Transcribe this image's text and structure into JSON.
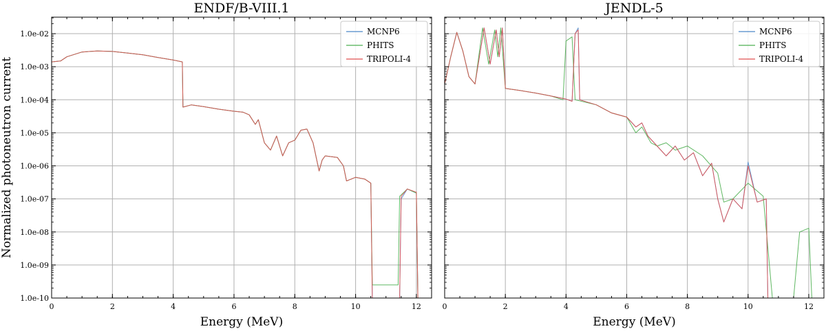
{
  "chart_data": [
    {
      "type": "line",
      "title": "ENDF/B-VIII.1",
      "xlabel": "Energy (MeV)",
      "ylabel": "Normalized photoneutron current",
      "xlim": [
        0,
        12.5
      ],
      "ylim_log10": [
        -10,
        -1.5
      ],
      "x_ticks": [
        "0",
        "2",
        "4",
        "6",
        "8",
        "10",
        "12"
      ],
      "y_ticks": [
        "1.0e-10",
        "1.0e-09",
        "1.0e-08",
        "1.0e-07",
        "1.0e-06",
        "1.0e-05",
        "1.0e-04",
        "1.0e-03",
        "1.0e-02"
      ],
      "grid": true,
      "legend_position": "top-right",
      "legend": [
        "MCNP6",
        "PHITS",
        "TRIPOLI-4"
      ],
      "series": [
        {
          "name": "MCNP6",
          "color": "#4a86c8",
          "points": [
            [
              0,
              0.0014
            ],
            [
              0.3,
              0.0015
            ],
            [
              0.5,
              0.002
            ],
            [
              1.0,
              0.0028
            ],
            [
              1.5,
              0.003
            ],
            [
              2.0,
              0.0029
            ],
            [
              2.5,
              0.0026
            ],
            [
              3.0,
              0.0023
            ],
            [
              3.5,
              0.0019
            ],
            [
              4.0,
              0.0016
            ],
            [
              4.3,
              0.0014
            ],
            [
              4.32,
              6e-05
            ],
            [
              4.6,
              7e-05
            ],
            [
              5.0,
              6.2e-05
            ],
            [
              5.5,
              5.2e-05
            ],
            [
              6.0,
              4.5e-05
            ],
            [
              6.3,
              4.2e-05
            ],
            [
              6.5,
              3.5e-05
            ],
            [
              6.7,
              1.8e-05
            ],
            [
              6.8,
              2.5e-05
            ],
            [
              7.0,
              5e-06
            ],
            [
              7.2,
              3e-06
            ],
            [
              7.4,
              8e-06
            ],
            [
              7.6,
              2e-06
            ],
            [
              7.8,
              5e-06
            ],
            [
              8.0,
              6e-06
            ],
            [
              8.2,
              1.2e-05
            ],
            [
              8.4,
              1.3e-05
            ],
            [
              8.6,
              5e-06
            ],
            [
              8.8,
              7e-07
            ],
            [
              8.9,
              1.5e-06
            ],
            [
              9.0,
              2e-06
            ],
            [
              9.4,
              1.8e-06
            ],
            [
              9.6,
              1e-06
            ],
            [
              9.7,
              3.5e-07
            ],
            [
              10.0,
              4.5e-07
            ],
            [
              10.3,
              4e-07
            ],
            [
              10.5,
              3e-07
            ],
            [
              10.55,
              1e-10
            ],
            [
              11.45,
              1e-10
            ],
            [
              11.5,
              1e-07
            ],
            [
              11.7,
              2e-07
            ],
            [
              12.0,
              1.5e-07
            ],
            [
              12.05,
              1e-10
            ]
          ]
        },
        {
          "name": "PHITS",
          "color": "#4caf50",
          "points": [
            [
              0,
              0.0014
            ],
            [
              0.3,
              0.0015
            ],
            [
              0.5,
              0.002
            ],
            [
              1.0,
              0.0028
            ],
            [
              1.5,
              0.003
            ],
            [
              2.0,
              0.0029
            ],
            [
              2.5,
              0.0026
            ],
            [
              3.0,
              0.0023
            ],
            [
              3.5,
              0.0019
            ],
            [
              4.0,
              0.0016
            ],
            [
              4.3,
              0.0014
            ],
            [
              4.32,
              6e-05
            ],
            [
              4.6,
              7e-05
            ],
            [
              5.0,
              6.2e-05
            ],
            [
              5.5,
              5.2e-05
            ],
            [
              6.0,
              4.5e-05
            ],
            [
              6.3,
              4.2e-05
            ],
            [
              6.5,
              3.5e-05
            ],
            [
              6.7,
              1.8e-05
            ],
            [
              6.8,
              2.5e-05
            ],
            [
              7.0,
              5e-06
            ],
            [
              7.2,
              3e-06
            ],
            [
              7.4,
              8e-06
            ],
            [
              7.6,
              2e-06
            ],
            [
              7.8,
              5e-06
            ],
            [
              8.0,
              6e-06
            ],
            [
              8.2,
              1.2e-05
            ],
            [
              8.4,
              1.3e-05
            ],
            [
              8.6,
              5e-06
            ],
            [
              8.8,
              7e-07
            ],
            [
              8.9,
              1.5e-06
            ],
            [
              9.0,
              2e-06
            ],
            [
              9.4,
              1.8e-06
            ],
            [
              9.6,
              1e-06
            ],
            [
              9.7,
              3.5e-07
            ],
            [
              10.0,
              4.5e-07
            ],
            [
              10.3,
              4e-07
            ],
            [
              10.5,
              3e-07
            ],
            [
              10.55,
              2.5e-10
            ],
            [
              11.4,
              2.5e-10
            ],
            [
              11.45,
              1.2e-07
            ],
            [
              11.7,
              2e-07
            ],
            [
              12.0,
              1.5e-07
            ],
            [
              12.05,
              1e-10
            ]
          ]
        },
        {
          "name": "TRIPOLI-4",
          "color": "#e05050",
          "points": [
            [
              0,
              0.0014
            ],
            [
              0.3,
              0.0015
            ],
            [
              0.5,
              0.002
            ],
            [
              1.0,
              0.0028
            ],
            [
              1.5,
              0.003
            ],
            [
              2.0,
              0.0029
            ],
            [
              2.5,
              0.0026
            ],
            [
              3.0,
              0.0023
            ],
            [
              3.5,
              0.0019
            ],
            [
              4.0,
              0.0016
            ],
            [
              4.3,
              0.0014
            ],
            [
              4.32,
              6e-05
            ],
            [
              4.6,
              7e-05
            ],
            [
              5.0,
              6.2e-05
            ],
            [
              5.5,
              5.2e-05
            ],
            [
              6.0,
              4.5e-05
            ],
            [
              6.3,
              4.2e-05
            ],
            [
              6.5,
              3.5e-05
            ],
            [
              6.7,
              1.8e-05
            ],
            [
              6.8,
              2.5e-05
            ],
            [
              7.0,
              5e-06
            ],
            [
              7.2,
              3e-06
            ],
            [
              7.4,
              8e-06
            ],
            [
              7.6,
              2e-06
            ],
            [
              7.8,
              5e-06
            ],
            [
              8.0,
              6e-06
            ],
            [
              8.2,
              1.2e-05
            ],
            [
              8.4,
              1.3e-05
            ],
            [
              8.6,
              5e-06
            ],
            [
              8.8,
              7e-07
            ],
            [
              8.9,
              1.5e-06
            ],
            [
              9.0,
              2e-06
            ],
            [
              9.4,
              1.8e-06
            ],
            [
              9.6,
              1e-06
            ],
            [
              9.7,
              3.5e-07
            ],
            [
              10.0,
              4.5e-07
            ],
            [
              10.3,
              4e-07
            ],
            [
              10.5,
              3e-07
            ],
            [
              10.55,
              1e-10
            ],
            [
              11.45,
              1e-10
            ],
            [
              11.5,
              1.2e-07
            ],
            [
              11.7,
              2e-07
            ],
            [
              12.0,
              1.6e-07
            ],
            [
              12.05,
              1e-10
            ]
          ]
        }
      ]
    },
    {
      "type": "line",
      "title": "JENDL-5",
      "xlabel": "Energy (MeV)",
      "xlim": [
        0,
        12.5
      ],
      "ylim_log10": [
        -10,
        -1.5
      ],
      "x_ticks": [
        "0",
        "2",
        "4",
        "6",
        "8",
        "10",
        "12"
      ],
      "grid": true,
      "legend_position": "top-right",
      "legend": [
        "MCNP6",
        "PHITS",
        "TRIPOLI-4"
      ],
      "series": [
        {
          "name": "MCNP6",
          "color": "#4a86c8",
          "points": [
            [
              0,
              0.0003
            ],
            [
              0.2,
              0.002
            ],
            [
              0.4,
              0.011
            ],
            [
              0.6,
              0.003
            ],
            [
              0.8,
              0.0005
            ],
            [
              1.0,
              0.0003
            ],
            [
              1.3,
              0.015
            ],
            [
              1.5,
              0.0012
            ],
            [
              1.7,
              0.013
            ],
            [
              1.8,
              0.002
            ],
            [
              1.9,
              0.015
            ],
            [
              2.0,
              0.00022
            ],
            [
              2.5,
              0.00019
            ],
            [
              3.0,
              0.00016
            ],
            [
              3.5,
              0.00013
            ],
            [
              4.0,
              0.000105
            ],
            [
              4.2,
              9e-05
            ],
            [
              4.3,
              0.01
            ],
            [
              4.4,
              0.015
            ],
            [
              4.45,
              0.0001
            ],
            [
              5.0,
              7e-05
            ],
            [
              5.5,
              4e-05
            ],
            [
              6.0,
              3e-05
            ],
            [
              6.3,
              1.5e-05
            ],
            [
              6.5,
              2e-05
            ],
            [
              6.7,
              8e-06
            ],
            [
              7.0,
              4e-06
            ],
            [
              7.3,
              2e-06
            ],
            [
              7.6,
              4e-06
            ],
            [
              7.9,
              1.5e-06
            ],
            [
              8.2,
              2.5e-06
            ],
            [
              8.5,
              5e-07
            ],
            [
              8.8,
              1.2e-06
            ],
            [
              9.0,
              1e-07
            ],
            [
              9.2,
              2e-08
            ],
            [
              9.5,
              1e-07
            ],
            [
              9.8,
              5e-08
            ],
            [
              10.0,
              1.3e-06
            ],
            [
              10.3,
              8e-08
            ],
            [
              10.6,
              1e-07
            ],
            [
              10.65,
              1e-10
            ]
          ]
        },
        {
          "name": "PHITS",
          "color": "#4caf50",
          "points": [
            [
              0,
              0.0003
            ],
            [
              0.2,
              0.002
            ],
            [
              0.4,
              0.011
            ],
            [
              0.6,
              0.003
            ],
            [
              0.8,
              0.0005
            ],
            [
              1.0,
              0.0003
            ],
            [
              1.25,
              0.015
            ],
            [
              1.45,
              0.0012
            ],
            [
              1.65,
              0.013
            ],
            [
              1.75,
              0.002
            ],
            [
              1.85,
              0.015
            ],
            [
              2.0,
              0.00022
            ],
            [
              2.5,
              0.00019
            ],
            [
              3.0,
              0.00016
            ],
            [
              3.5,
              0.00013
            ],
            [
              3.9,
              0.0001
            ],
            [
              4.0,
              0.006
            ],
            [
              4.2,
              0.008
            ],
            [
              4.3,
              0.0001
            ],
            [
              5.0,
              7e-05
            ],
            [
              5.5,
              4e-05
            ],
            [
              6.0,
              3e-05
            ],
            [
              6.3,
              1e-05
            ],
            [
              6.5,
              1.5e-05
            ],
            [
              6.8,
              5e-06
            ],
            [
              7.0,
              4e-06
            ],
            [
              7.3,
              5e-06
            ],
            [
              7.6,
              3e-06
            ],
            [
              8.0,
              4e-06
            ],
            [
              8.5,
              2e-06
            ],
            [
              9.0,
              6e-07
            ],
            [
              9.2,
              8e-08
            ],
            [
              9.5,
              1e-07
            ],
            [
              10.0,
              3e-07
            ],
            [
              10.5,
              1.2e-07
            ],
            [
              10.8,
              1e-10
            ],
            [
              11.5,
              1e-10
            ],
            [
              11.7,
              1e-08
            ],
            [
              12.0,
              1.3e-08
            ],
            [
              12.1,
              1e-10
            ]
          ]
        },
        {
          "name": "TRIPOLI-4",
          "color": "#e05050",
          "points": [
            [
              0,
              0.0003
            ],
            [
              0.2,
              0.002
            ],
            [
              0.4,
              0.011
            ],
            [
              0.6,
              0.003
            ],
            [
              0.8,
              0.0005
            ],
            [
              1.0,
              0.0003
            ],
            [
              1.3,
              0.015
            ],
            [
              1.5,
              0.0012
            ],
            [
              1.7,
              0.013
            ],
            [
              1.8,
              0.002
            ],
            [
              1.9,
              0.015
            ],
            [
              2.0,
              0.00022
            ],
            [
              2.5,
              0.00019
            ],
            [
              3.0,
              0.00016
            ],
            [
              3.5,
              0.00013
            ],
            [
              4.0,
              0.000105
            ],
            [
              4.2,
              9e-05
            ],
            [
              4.3,
              0.01
            ],
            [
              4.4,
              0.013
            ],
            [
              4.45,
              0.0001
            ],
            [
              5.0,
              7e-05
            ],
            [
              5.5,
              4e-05
            ],
            [
              6.0,
              3e-05
            ],
            [
              6.3,
              1.5e-05
            ],
            [
              6.5,
              2e-05
            ],
            [
              6.7,
              8e-06
            ],
            [
              7.0,
              4e-06
            ],
            [
              7.3,
              2e-06
            ],
            [
              7.6,
              4e-06
            ],
            [
              7.9,
              1.5e-06
            ],
            [
              8.2,
              2.5e-06
            ],
            [
              8.5,
              5e-07
            ],
            [
              8.8,
              1.2e-06
            ],
            [
              9.0,
              1e-07
            ],
            [
              9.2,
              2e-08
            ],
            [
              9.5,
              1e-07
            ],
            [
              9.8,
              5e-08
            ],
            [
              10.0,
              1e-06
            ],
            [
              10.3,
              8e-08
            ],
            [
              10.6,
              1e-07
            ],
            [
              10.65,
              1e-10
            ]
          ]
        }
      ]
    }
  ]
}
